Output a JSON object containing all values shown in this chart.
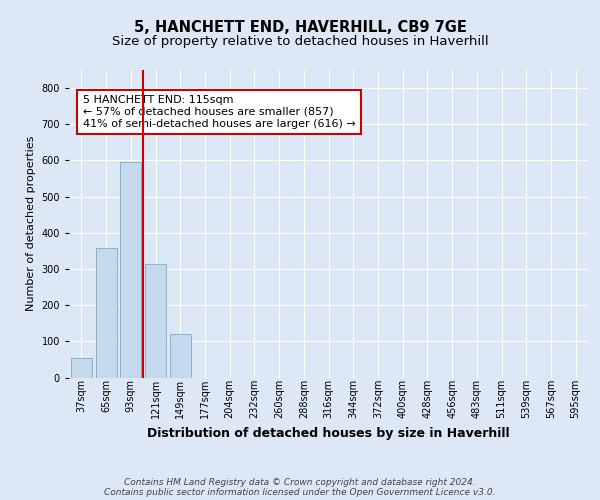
{
  "title": "5, HANCHETT END, HAVERHILL, CB9 7GE",
  "subtitle": "Size of property relative to detached houses in Haverhill",
  "xlabel": "Distribution of detached houses by size in Haverhill",
  "ylabel": "Number of detached properties",
  "categories": [
    "37sqm",
    "65sqm",
    "93sqm",
    "121sqm",
    "149sqm",
    "177sqm",
    "204sqm",
    "232sqm",
    "260sqm",
    "288sqm",
    "316sqm",
    "344sqm",
    "372sqm",
    "400sqm",
    "428sqm",
    "456sqm",
    "483sqm",
    "511sqm",
    "539sqm",
    "567sqm",
    "595sqm"
  ],
  "values": [
    55,
    358,
    595,
    315,
    120,
    0,
    0,
    0,
    0,
    0,
    0,
    0,
    0,
    0,
    0,
    0,
    0,
    0,
    0,
    0,
    0
  ],
  "bar_color": "#c5d9ec",
  "bar_edge_color": "#7aaac8",
  "vline_x": 2.5,
  "vline_color": "#cc0000",
  "annotation_text": "5 HANCHETT END: 115sqm\n← 57% of detached houses are smaller (857)\n41% of semi-detached houses are larger (616) →",
  "annotation_box_color": "#ffffff",
  "annotation_box_edge_color": "#cc0000",
  "bg_color": "#dce8f5",
  "plot_bg_color": "#dce8f5",
  "grid_color": "#ffffff",
  "footer_text": "Contains HM Land Registry data © Crown copyright and database right 2024.\nContains public sector information licensed under the Open Government Licence v3.0.",
  "ylim": [
    0,
    850
  ],
  "yticks": [
    0,
    100,
    200,
    300,
    400,
    500,
    600,
    700,
    800
  ],
  "title_fontsize": 10.5,
  "subtitle_fontsize": 9.5,
  "xlabel_fontsize": 9,
  "ylabel_fontsize": 8,
  "tick_fontsize": 7,
  "annotation_fontsize": 8,
  "footer_fontsize": 6.5
}
